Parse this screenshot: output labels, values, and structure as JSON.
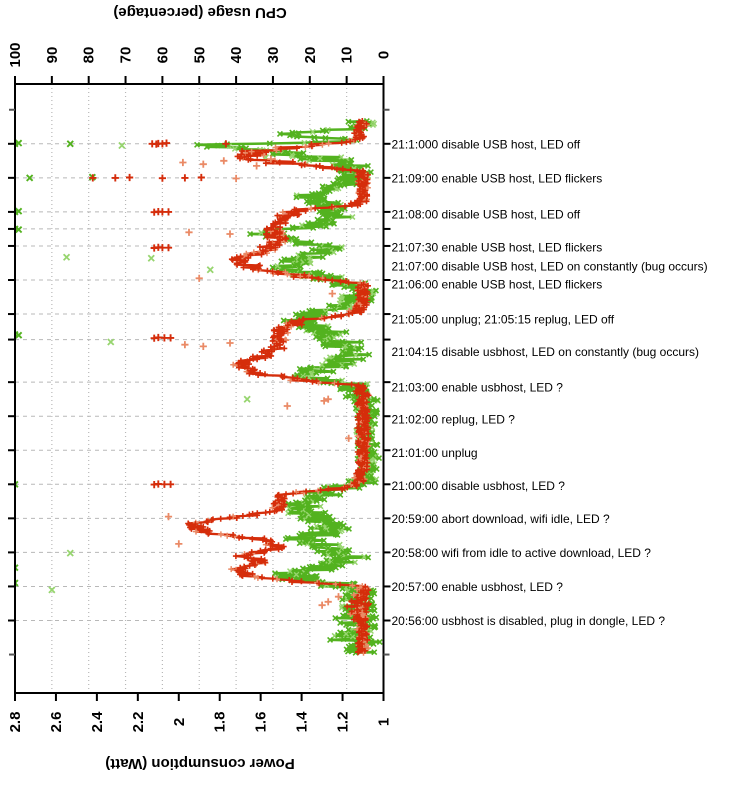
{
  "titles": {
    "top": "CPU usage (percentage)",
    "bottom": "Power consumption (Watt)"
  },
  "colors": {
    "cpu": "#53b21f",
    "cpu_light": "#97d56f",
    "power": "#d52d0b",
    "power_light": "#ea8a66",
    "grid": "#b8b8b8",
    "border": "#000000",
    "text": "#000000"
  },
  "cpu_axis": {
    "tick_labels": [
      "100",
      "90",
      "80",
      "70",
      "60",
      "50",
      "40",
      "30",
      "20",
      "10",
      "0"
    ],
    "min": 0,
    "max": 100
  },
  "power_axis": {
    "tick_labels": [
      "2.8",
      "2.6",
      "2.4",
      "2.2",
      "2",
      "1.8",
      "1.6",
      "1.4",
      "1.2",
      "1"
    ],
    "min": 1,
    "max": 2.8
  },
  "time_axis": {
    "start": "20:55:00",
    "end": "21:11:30",
    "direction": "bottom-to-top",
    "unlabeled_tick_minutes": [
      16,
      0
    ]
  },
  "rows": [
    {
      "t": 15,
      "dy": 0,
      "label": "21:1:000 disable USB host, LED off"
    },
    {
      "t": 14,
      "dy": 0,
      "label": "21:09:00 enable USB host, LED flickers"
    },
    {
      "t": 13,
      "dy": 2,
      "label": "21:08:00 disable USB host, LED off"
    },
    {
      "t": 12.5,
      "dy": 18,
      "label": "21:07:30 enable USB host, LED flickers"
    },
    {
      "t": 12,
      "dy": 20,
      "label": "21:07:00 disable USB host, LED on constantly (bug occurs)"
    },
    {
      "t": 11,
      "dy": 4,
      "label": "21:06:00 enable USB host, LED flickers"
    },
    {
      "t": 10,
      "dy": 5,
      "label": "21:05:00 unplug; 21:05:15 replug, LED off"
    },
    {
      "t": 9.25,
      "dy": 12,
      "label": "21:04:15 disable usbhost, LED on constantly (bug occurs)"
    },
    {
      "t": 8,
      "dy": 5,
      "label": "21:03:00 enable usbhost, LED ?"
    },
    {
      "t": 7,
      "dy": 3,
      "label": "21:02:00 replug, LED ?"
    },
    {
      "t": 6,
      "dy": 2,
      "label": "21:01:00 unplug"
    },
    {
      "t": 5,
      "dy": 1,
      "label": "21:00:00 disable usbhost, LED ?"
    },
    {
      "t": 4,
      "dy": 0,
      "label": "20:59:00 abort download, wifi idle, LED ?"
    },
    {
      "t": 3,
      "dy": 0,
      "label": "20:58:00 wifi from idle to active download, LED ?"
    },
    {
      "t": 2,
      "dy": 0,
      "label": "20:57:00 enable usbhost, LED ?"
    },
    {
      "t": 1,
      "dy": 0,
      "label": "20:56:00 usbhost is disabled, plug in dongle, LED ?"
    }
  ],
  "chart_data": {
    "type": "scatter",
    "note": "t = minutes after 20:55:00; envelope = [t, mean value, noise amplitude] sampled densely; outliers = isolated points [t, value, light?]",
    "sample_dt_min": 0.02,
    "series": [
      {
        "name": "CPU usage (percentage)",
        "marker": "cross",
        "value_range": [
          0,
          100
        ],
        "envelope": [
          [
            0.05,
            5,
            4
          ],
          [
            0.4,
            8,
            7
          ],
          [
            0.8,
            6,
            5
          ],
          [
            1.2,
            10,
            8
          ],
          [
            1.6,
            7,
            5
          ],
          [
            1.9,
            6,
            4
          ],
          [
            2.1,
            16,
            8
          ],
          [
            2.35,
            26,
            6
          ],
          [
            2.6,
            15,
            6
          ],
          [
            2.85,
            9,
            5
          ],
          [
            3.1,
            15,
            6
          ],
          [
            3.4,
            21,
            6
          ],
          [
            3.7,
            14,
            6
          ],
          [
            4.0,
            17,
            6
          ],
          [
            4.3,
            23,
            6
          ],
          [
            4.6,
            19,
            7
          ],
          [
            4.85,
            13,
            6
          ],
          [
            5.05,
            6,
            4
          ],
          [
            5.5,
            4,
            3
          ],
          [
            7.4,
            4.5,
            3.5
          ],
          [
            7.95,
            10,
            6
          ],
          [
            8.2,
            22,
            6
          ],
          [
            8.5,
            14,
            6
          ],
          [
            8.8,
            8,
            5
          ],
          [
            9.1,
            11,
            6
          ],
          [
            9.5,
            16,
            6
          ],
          [
            9.85,
            22,
            6
          ],
          [
            10.1,
            15,
            6
          ],
          [
            10.35,
            8,
            5
          ],
          [
            10.7,
            6,
            4
          ],
          [
            11.0,
            12,
            6
          ],
          [
            11.35,
            28,
            6
          ],
          [
            11.65,
            20,
            6
          ],
          [
            11.95,
            13,
            6
          ],
          [
            12.3,
            34,
            5
          ],
          [
            12.6,
            19,
            6
          ],
          [
            12.9,
            12,
            5
          ],
          [
            13.2,
            15,
            5
          ],
          [
            13.5,
            20,
            5
          ],
          [
            13.8,
            10,
            5
          ],
          [
            14.1,
            7,
            4
          ],
          [
            14.45,
            11,
            7
          ],
          [
            14.75,
            26,
            9
          ],
          [
            14.97,
            50,
            4
          ],
          [
            15.07,
            7,
            4
          ],
          [
            15.3,
            28,
            4
          ],
          [
            15.45,
            9,
            5
          ],
          [
            15.68,
            5,
            4
          ]
        ],
        "outliers": [
          [
            15.0,
            100,
            0
          ],
          [
            15.02,
            99,
            0
          ],
          [
            15.0,
            85,
            0
          ],
          [
            14.95,
            71,
            1
          ],
          [
            14.0,
            96,
            0
          ],
          [
            14.02,
            79,
            0
          ],
          [
            13.0,
            100,
            0
          ],
          [
            13.02,
            99,
            0
          ],
          [
            12.5,
            100,
            0
          ],
          [
            12.48,
            99,
            0
          ],
          [
            11.67,
            86,
            1
          ],
          [
            11.64,
            63,
            1
          ],
          [
            11.3,
            47,
            1
          ],
          [
            9.4,
            100,
            0
          ],
          [
            9.38,
            99,
            0
          ],
          [
            9.18,
            74,
            1
          ],
          [
            7.5,
            37,
            1
          ],
          [
            5.0,
            100,
            0
          ],
          [
            2.98,
            85,
            1
          ],
          [
            2.55,
            100,
            0
          ],
          [
            2.1,
            100,
            0
          ],
          [
            1.9,
            90,
            1
          ],
          [
            14.6,
            32,
            1
          ]
        ]
      },
      {
        "name": "Power consumption (Watt)",
        "marker": "plus",
        "value_range": [
          1,
          2.8
        ],
        "envelope": [
          [
            0.05,
            1.1,
            0.025
          ],
          [
            0.9,
            1.1,
            0.03
          ],
          [
            1.3,
            1.13,
            0.06
          ],
          [
            1.7,
            1.11,
            0.04
          ],
          [
            2.0,
            1.1,
            0.025
          ],
          [
            2.15,
            1.45,
            0.08
          ],
          [
            2.3,
            1.66,
            0.05
          ],
          [
            2.5,
            1.72,
            0.04
          ],
          [
            2.7,
            1.58,
            0.05
          ],
          [
            2.9,
            1.7,
            0.05
          ],
          [
            3.1,
            1.52,
            0.04
          ],
          [
            3.35,
            1.55,
            0.05
          ],
          [
            3.6,
            1.88,
            0.05
          ],
          [
            3.85,
            1.93,
            0.04
          ],
          [
            4.05,
            1.7,
            0.05
          ],
          [
            4.2,
            1.52,
            0.03
          ],
          [
            4.7,
            1.5,
            0.03
          ],
          [
            4.85,
            1.25,
            0.06
          ],
          [
            5.0,
            1.13,
            0.03
          ],
          [
            5.4,
            1.1,
            0.025
          ],
          [
            7.5,
            1.1,
            0.03
          ],
          [
            7.9,
            1.11,
            0.03
          ],
          [
            8.05,
            1.4,
            0.07
          ],
          [
            8.25,
            1.62,
            0.05
          ],
          [
            8.5,
            1.71,
            0.04
          ],
          [
            8.75,
            1.6,
            0.05
          ],
          [
            9.0,
            1.52,
            0.04
          ],
          [
            9.55,
            1.5,
            0.04
          ],
          [
            9.8,
            1.4,
            0.06
          ],
          [
            10.0,
            1.15,
            0.04
          ],
          [
            10.2,
            1.11,
            0.03
          ],
          [
            10.9,
            1.1,
            0.025
          ],
          [
            11.1,
            1.4,
            0.07
          ],
          [
            11.35,
            1.62,
            0.06
          ],
          [
            11.6,
            1.73,
            0.04
          ],
          [
            11.85,
            1.58,
            0.05
          ],
          [
            12.15,
            1.52,
            0.05
          ],
          [
            12.5,
            1.55,
            0.05
          ],
          [
            12.8,
            1.5,
            0.04
          ],
          [
            13.05,
            1.42,
            0.06
          ],
          [
            13.2,
            1.14,
            0.04
          ],
          [
            13.35,
            1.1,
            0.025
          ],
          [
            14.2,
            1.1,
            0.03
          ],
          [
            14.4,
            1.45,
            0.1
          ],
          [
            14.6,
            1.7,
            0.09
          ],
          [
            14.8,
            1.6,
            0.09
          ],
          [
            14.95,
            1.4,
            0.08
          ],
          [
            15.1,
            1.13,
            0.03
          ],
          [
            15.68,
            1.1,
            0.025
          ]
        ],
        "outliers": [
          [
            15.0,
            2.08,
            0
          ],
          [
            15.01,
            2.1,
            0
          ],
          [
            14.99,
            2.11,
            0
          ],
          [
            15.0,
            2.13,
            0
          ],
          [
            15.02,
            2.06,
            0
          ],
          [
            15.0,
            1.77,
            0
          ],
          [
            14.0,
            2.42,
            0
          ],
          [
            14.0,
            2.31,
            0
          ],
          [
            14.01,
            2.24,
            0
          ],
          [
            13.99,
            2.08,
            0
          ],
          [
            14.0,
            1.97,
            0
          ],
          [
            14.01,
            1.89,
            0
          ],
          [
            13.98,
            1.72,
            1
          ],
          [
            14.45,
            1.98,
            1
          ],
          [
            14.4,
            1.88,
            1
          ],
          [
            14.5,
            1.78,
            1
          ],
          [
            14.35,
            1.62,
            1
          ],
          [
            14.55,
            1.55,
            1
          ],
          [
            13.0,
            2.08,
            0
          ],
          [
            13.01,
            2.1,
            0
          ],
          [
            12.99,
            2.12,
            0
          ],
          [
            13.0,
            2.05,
            0
          ],
          [
            12.4,
            1.95,
            1
          ],
          [
            12.35,
            1.75,
            1
          ],
          [
            11.95,
            2.08,
            0
          ],
          [
            11.96,
            2.1,
            0
          ],
          [
            11.94,
            2.12,
            0
          ],
          [
            11.95,
            2.05,
            0
          ],
          [
            11.05,
            1.9,
            1
          ],
          [
            10.6,
            1.25,
            1
          ],
          [
            9.3,
            2.07,
            0
          ],
          [
            9.31,
            2.1,
            0
          ],
          [
            9.29,
            2.12,
            0
          ],
          [
            9.3,
            2.04,
            0
          ],
          [
            9.1,
            1.97,
            1
          ],
          [
            9.05,
            1.88,
            1
          ],
          [
            9.15,
            1.75,
            1
          ],
          [
            7.3,
            1.47,
            1
          ],
          [
            7.45,
            1.29,
            1
          ],
          [
            7.5,
            1.27,
            1
          ],
          [
            6.35,
            1.17,
            1
          ],
          [
            5.0,
            2.07,
            0
          ],
          [
            5.01,
            2.1,
            0
          ],
          [
            4.99,
            2.12,
            0
          ],
          [
            5.0,
            2.04,
            0
          ],
          [
            4.05,
            2.05,
            1
          ],
          [
            3.25,
            2.0,
            1
          ],
          [
            1.55,
            1.27,
            1
          ],
          [
            1.7,
            1.22,
            1
          ],
          [
            1.45,
            1.3,
            1
          ]
        ]
      }
    ]
  }
}
